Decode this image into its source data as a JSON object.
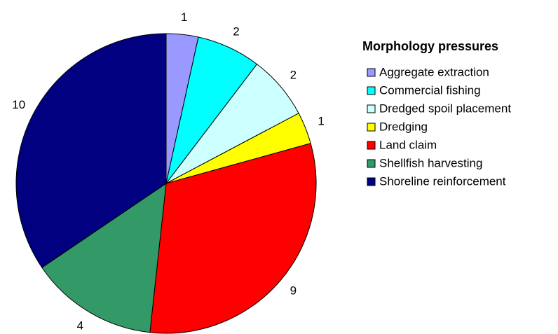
{
  "chart_data": {
    "type": "pie",
    "legend_title": "Morphology pressures",
    "categories": [
      "Aggregate extraction",
      "Commercial fishing",
      "Dredged spoil placement",
      "Dredging",
      "Land claim",
      "Shellfish harvesting",
      "Shoreline reinforcement"
    ],
    "values": [
      1,
      2,
      2,
      1,
      9,
      4,
      10
    ],
    "colors": [
      "#9999ff",
      "#00ffff",
      "#ccffff",
      "#ffff00",
      "#ff0000",
      "#339966",
      "#000080"
    ],
    "legend": "right"
  }
}
